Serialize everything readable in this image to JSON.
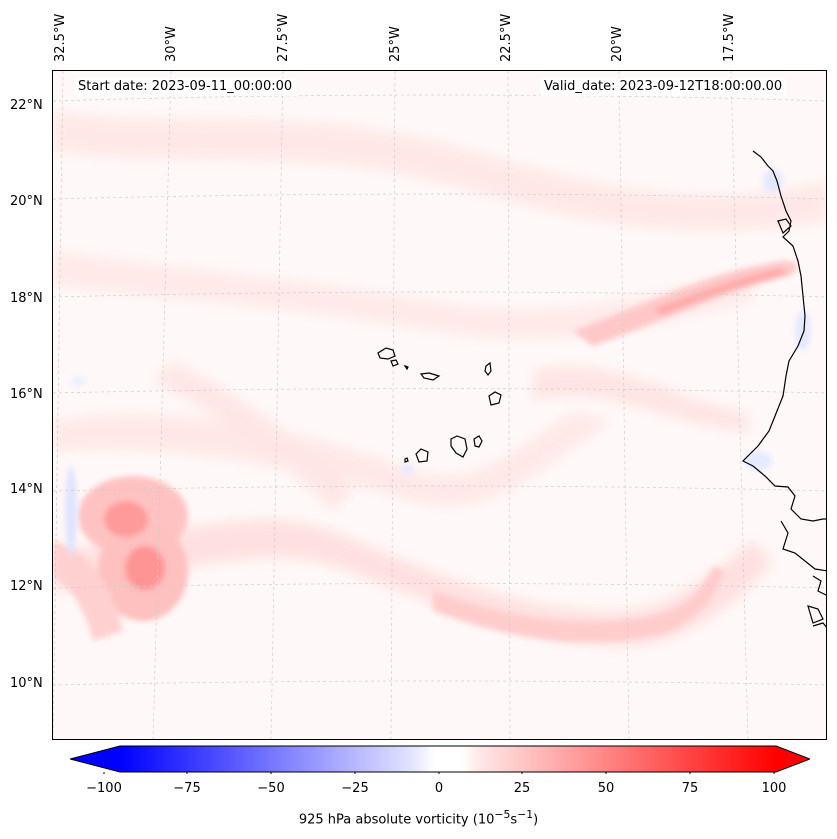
{
  "map": {
    "start_label": "Start date: 2023-09-11_00:00:00",
    "valid_label": "Valid_date: 2023-09-12T18:00:00.00",
    "longitude_labels": [
      "32.5°W",
      "30°W",
      "27.5°W",
      "25°W",
      "22.5°W",
      "20°W",
      "17.5°W"
    ],
    "latitude_labels": [
      "22°N",
      "20°N",
      "18°N",
      "16°N",
      "14°N",
      "12°N",
      "10°N"
    ]
  },
  "colorbar": {
    "ticks": [
      "−100",
      "−75",
      "−50",
      "−25",
      "0",
      "25",
      "50",
      "75",
      "100"
    ],
    "title": "925 hPa absolute vorticity (10",
    "title_exp1": "−5",
    "title_mid": "s",
    "title_exp2": "−1",
    "title_end": ")",
    "min_color": "#0000ff",
    "mid_color": "#ffffff",
    "max_color": "#ff0000"
  },
  "colors": {
    "coast": "#000000",
    "grid": "#c8c8c8",
    "weak_positive": "#ffe0e0",
    "moderate_positive": "#ffb4b4",
    "strong_positive": "#ff8080",
    "weak_negative": "#e4e8ff"
  }
}
